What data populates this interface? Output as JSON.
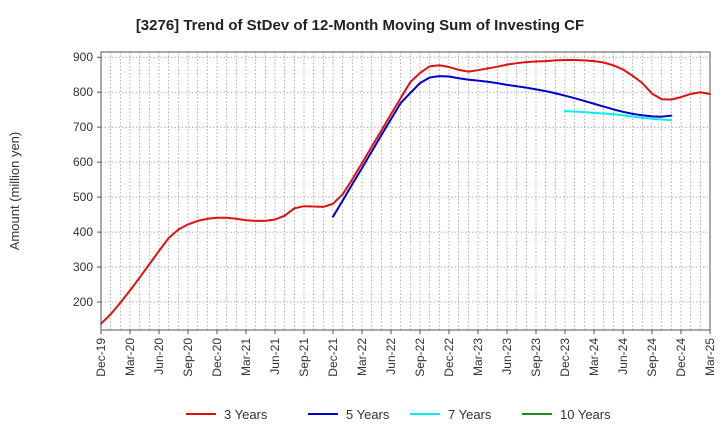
{
  "chart_data": {
    "type": "line",
    "title": "[3276]  Trend of StDev of 12-Month Moving Sum of Investing CF",
    "xlabel": "",
    "ylabel": "Amount (million yen)",
    "ylim": [
      120,
      915
    ],
    "yticks": [
      200,
      300,
      400,
      500,
      600,
      700,
      800,
      900
    ],
    "x_tick_labels": [
      "Dec-19",
      "Mar-20",
      "Jun-20",
      "Sep-20",
      "Dec-20",
      "Mar-21",
      "Jun-21",
      "Sep-21",
      "Dec-21",
      "Mar-22",
      "Jun-22",
      "Sep-22",
      "Dec-22",
      "Mar-23",
      "Jun-23",
      "Sep-23",
      "Dec-23",
      "Mar-24",
      "Jun-24",
      "Sep-24",
      "Dec-24",
      "Mar-25"
    ],
    "x_start": "Dec-19",
    "x_end": "Mar-25",
    "grid": true,
    "legend_position": "bottom",
    "series": [
      {
        "name": "3 Years",
        "color": "#dd1111",
        "start": "Dec-19",
        "values": [
          138,
          165,
          198,
          233,
          270,
          308,
          346,
          383,
          407,
          422,
          432,
          438,
          441,
          441,
          438,
          434,
          432,
          432,
          436,
          447,
          468,
          474,
          473,
          472,
          481,
          508,
          551,
          597,
          644,
          690,
          737,
          783,
          829,
          855,
          874,
          877,
          872,
          864,
          859,
          863,
          868,
          873,
          879,
          883,
          886,
          888,
          889,
          891,
          892,
          892,
          891,
          889,
          885,
          877,
          865,
          847,
          826,
          796,
          780,
          779,
          786,
          795,
          800,
          795
        ]
      },
      {
        "name": "5 Years",
        "color": "#0000cc",
        "start": "Dec-21",
        "values": [
          444,
          490,
          537,
          583,
          630,
          677,
          723,
          769,
          798,
          826,
          842,
          846,
          845,
          840,
          836,
          833,
          830,
          826,
          821,
          817,
          813,
          808,
          803,
          797,
          790,
          783,
          775,
          767,
          759,
          751,
          744,
          738,
          734,
          731,
          730,
          733
        ]
      },
      {
        "name": "7 Years",
        "color": "#00eeee",
        "start": "Dec-23",
        "values": [
          746,
          745,
          743,
          741,
          739,
          737,
          734,
          730,
          727,
          724,
          722,
          720
        ]
      },
      {
        "name": "10 Years",
        "color": "#228b22",
        "start": "Dec-24",
        "values": []
      }
    ]
  }
}
